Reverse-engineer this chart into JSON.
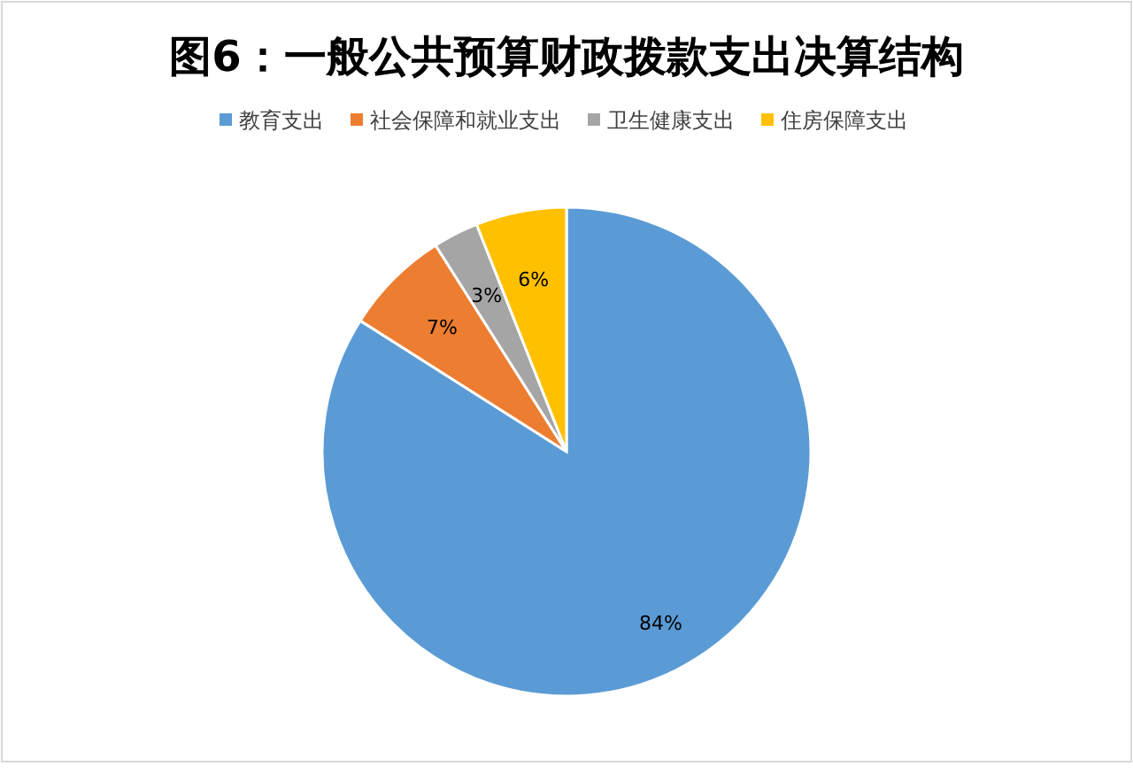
{
  "chart_data": {
    "type": "pie",
    "title": "图6：一般公共预算财政拨款支出决算结构",
    "categories": [
      "教育支出",
      "社会保障和就业支出",
      "卫生健康支出",
      "住房保障支出"
    ],
    "values": [
      84,
      7,
      3,
      6
    ],
    "colors": [
      "#5b9bd5",
      "#ed7d31",
      "#a5a5a5",
      "#ffc000"
    ],
    "value_labels": [
      "84%",
      "7%",
      "3%",
      "6%"
    ],
    "legend": "top"
  }
}
